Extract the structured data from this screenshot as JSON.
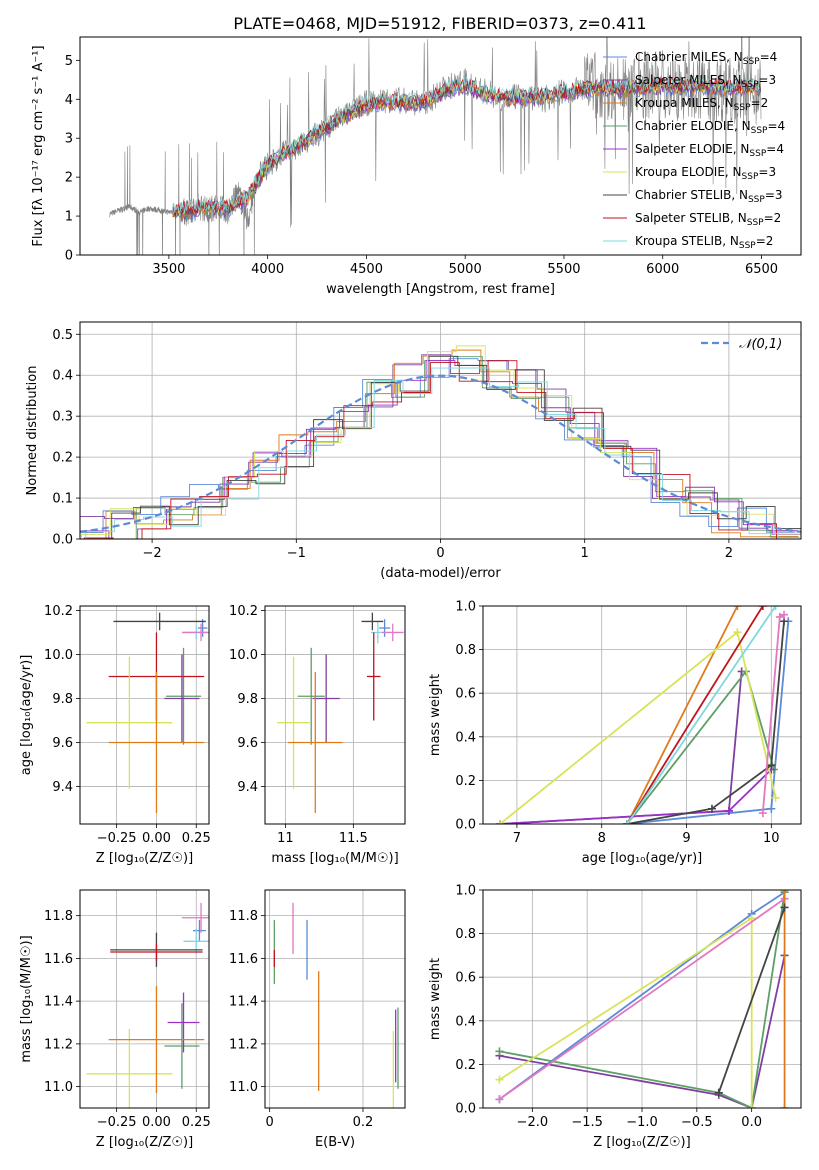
{
  "figure_title": "PLATE=0468, MJD=51912, FIBERID=0373, z=0.411",
  "chart_data": [
    {
      "id": "spectrum",
      "type": "line",
      "xlabel": "wavelength [Angstrom, rest frame]",
      "ylabel": "Flux [fλ 10⁻¹⁷ erg cm⁻² s⁻¹ A⁻¹]",
      "xlim": [
        3050,
        6700
      ],
      "ylim": [
        0,
        5.6
      ],
      "xticks": [
        3500,
        4000,
        4500,
        5000,
        5500,
        6000,
        6500
      ],
      "yticks": [
        0,
        1,
        2,
        3,
        4,
        5
      ],
      "grid": false,
      "legend_position": "top-right",
      "data_series": {
        "name": "",
        "color": "#808080",
        "x": [
          3200,
          3250,
          3300,
          3350,
          3400,
          3450,
          3500,
          3550,
          3600,
          3650,
          3700,
          3750,
          3800,
          3850,
          3900,
          3950,
          4000,
          4100,
          4200,
          4300,
          4400,
          4500,
          4600,
          4700,
          4800,
          4900,
          5000,
          5100,
          5200,
          5300,
          5400,
          5500,
          5600,
          5700,
          5800,
          5900,
          6000,
          6100,
          6200,
          6300,
          6400,
          6500
        ],
        "y": [
          1.05,
          1.15,
          1.25,
          1.1,
          1.2,
          1.15,
          1.1,
          1.2,
          1.05,
          1.25,
          1.15,
          1.3,
          1.1,
          1.6,
          0.9,
          2.0,
          2.3,
          2.7,
          2.9,
          3.3,
          3.6,
          3.9,
          4.0,
          3.95,
          3.9,
          4.3,
          4.45,
          4.2,
          4.0,
          4.1,
          4.0,
          4.2,
          4.3,
          4.4,
          4.2,
          4.35,
          4.4,
          4.25,
          4.3,
          4.3,
          4.25,
          4.25
        ]
      },
      "series": [
        {
          "name": "Chabrier MILES, N_SSP=4",
          "color": "#5b8bd6"
        },
        {
          "name": "Salpeter MILES, N_SSP=3",
          "color": "#7f3f9f"
        },
        {
          "name": "Kroupa MILES, N_SSP=2",
          "color": "#e07b1a"
        },
        {
          "name": "Chabrier ELODIE, N_SSP=4",
          "color": "#5e9e68"
        },
        {
          "name": "Salpeter ELODIE, N_SSP=4",
          "color": "#9b30c8"
        },
        {
          "name": "Kroupa ELODIE, N_SSP=3",
          "color": "#d9e35a"
        },
        {
          "name": "Chabrier STELIB, N_SSP=3",
          "color": "#444444"
        },
        {
          "name": "Salpeter STELIB, N_SSP=2",
          "color": "#c0141c"
        },
        {
          "name": "Kroupa STELIB, N_SSP=2",
          "color": "#7fd8e0"
        }
      ],
      "model_curve": {
        "x": [
          3520,
          3600,
          3700,
          3800,
          3900,
          3950,
          4000,
          4100,
          4200,
          4300,
          4400,
          4500,
          4600,
          4700,
          4800,
          4900,
          5000,
          5100,
          5200,
          5300,
          5400,
          5500,
          5600,
          5700,
          5800,
          5900,
          6000,
          6100,
          6200,
          6300,
          6400,
          6500
        ],
        "y": [
          1.1,
          1.15,
          1.25,
          1.2,
          1.5,
          1.9,
          2.3,
          2.65,
          2.95,
          3.3,
          3.6,
          3.85,
          3.95,
          3.9,
          3.95,
          4.25,
          4.35,
          4.15,
          4.05,
          4.05,
          4.1,
          4.15,
          4.25,
          4.3,
          4.25,
          4.3,
          4.35,
          4.3,
          4.35,
          4.3,
          4.3,
          4.3
        ]
      }
    },
    {
      "id": "residuals",
      "type": "histogram",
      "xlabel": "(data-model)/error",
      "ylabel": "Normed distribution",
      "xlim": [
        -2.5,
        2.5
      ],
      "ylim": [
        0,
        0.53
      ],
      "xticks": [
        -2,
        -1,
        0,
        1,
        2
      ],
      "yticks": [
        0.0,
        0.1,
        0.2,
        0.3,
        0.4,
        0.5
      ],
      "grid": true,
      "legend_position": "top-right",
      "legend_label": "𝒩(0,1)",
      "bin_edges": [
        -2.5,
        -2.3,
        -2.1,
        -1.9,
        -1.7,
        -1.5,
        -1.3,
        -1.1,
        -0.9,
        -0.7,
        -0.5,
        -0.3,
        -0.1,
        0.1,
        0.3,
        0.5,
        0.7,
        0.9,
        1.1,
        1.3,
        1.5,
        1.7,
        1.9,
        2.1,
        2.3,
        2.5
      ],
      "hist_values": [
        0.01,
        0.03,
        0.05,
        0.07,
        0.1,
        0.13,
        0.17,
        0.21,
        0.26,
        0.31,
        0.35,
        0.39,
        0.42,
        0.43,
        0.41,
        0.38,
        0.33,
        0.28,
        0.23,
        0.18,
        0.13,
        0.09,
        0.06,
        0.04,
        0.02
      ],
      "hist_colors": [
        "#5b8bd6",
        "#7f3f9f",
        "#e07b1a",
        "#5e9e68",
        "#9b30c8",
        "#d9e35a",
        "#444444",
        "#c0141c",
        "#7fd8e0"
      ]
    },
    {
      "id": "age-vs-Z",
      "type": "scatter",
      "xlabel": "Z [log₁₀(Z/Z☉)]",
      "ylabel": "age  [log₁₀(age/yr)]",
      "xlim": [
        -0.48,
        0.33
      ],
      "ylim": [
        9.23,
        10.22
      ],
      "xticks": [
        -0.25,
        0.0,
        0.25
      ],
      "xtick_labels": [
        "−0.25",
        "0.00",
        "0.25"
      ],
      "yticks": [
        9.4,
        9.6,
        9.8,
        10.0,
        10.2
      ],
      "grid": true,
      "points": [
        {
          "x": 0.29,
          "y": 10.12,
          "xerr": 0.03,
          "yerr": 0.04,
          "color": "#5b8bd6"
        },
        {
          "x": 0.25,
          "y": 10.1,
          "xerr": 0.08,
          "yerr": 0.03,
          "color": "#7fd8e0"
        },
        {
          "x": 0.28,
          "y": 10.1,
          "xerr": 0.12,
          "yerr": 0.04,
          "color": "#e377c2"
        },
        {
          "x": 0.02,
          "y": 10.15,
          "xerr": 0.29,
          "yerr": 0.04,
          "color": "#444444"
        },
        {
          "x": 0.17,
          "y": 9.81,
          "xerr": 0.11,
          "yerr": 0.22,
          "color": "#5e9e68"
        },
        {
          "x": 0.0,
          "y": 9.9,
          "xerr": 0.3,
          "yerr": 0.2,
          "color": "#c0141c"
        },
        {
          "x": 0.16,
          "y": 9.8,
          "xerr": 0.11,
          "yerr": 0.2,
          "color": "#7f3f9f"
        },
        {
          "x": -0.17,
          "y": 9.69,
          "xerr": 0.27,
          "yerr": 0.3,
          "color": "#d9e35a"
        },
        {
          "x": -0.0,
          "y": 9.6,
          "xerr": 0.3,
          "yerr": 0.32,
          "color": "#e07b1a"
        }
      ]
    },
    {
      "id": "age-vs-mass",
      "type": "scatter",
      "xlabel": "mass [log₁₀(M/M☉)]",
      "ylabel": "",
      "xlim": [
        10.85,
        11.88
      ],
      "ylim": [
        9.23,
        10.22
      ],
      "xticks": [
        11.0,
        11.5
      ],
      "yticks": [
        9.4,
        9.6,
        9.8,
        10.0,
        10.2
      ],
      "grid": true,
      "points": [
        {
          "x": 11.73,
          "y": 10.12,
          "xerr": 0.04,
          "yerr": 0.04,
          "color": "#5b8bd6"
        },
        {
          "x": 11.68,
          "y": 10.1,
          "xerr": 0.05,
          "yerr": 0.05,
          "color": "#7fd8e0"
        },
        {
          "x": 11.79,
          "y": 10.1,
          "xerr": 0.08,
          "yerr": 0.04,
          "color": "#e377c2"
        },
        {
          "x": 11.64,
          "y": 10.15,
          "xerr": 0.08,
          "yerr": 0.04,
          "color": "#444444"
        },
        {
          "x": 11.19,
          "y": 9.81,
          "xerr": 0.1,
          "yerr": 0.22,
          "color": "#5e9e68"
        },
        {
          "x": 11.65,
          "y": 9.9,
          "xerr": 0.05,
          "yerr": 0.2,
          "color": "#c0141c"
        },
        {
          "x": 11.3,
          "y": 9.8,
          "xerr": 0.1,
          "yerr": 0.2,
          "color": "#7f3f9f"
        },
        {
          "x": 11.06,
          "y": 9.69,
          "xerr": 0.12,
          "yerr": 0.3,
          "color": "#d9e35a"
        },
        {
          "x": 11.22,
          "y": 9.6,
          "xerr": 0.2,
          "yerr": 0.32,
          "color": "#e07b1a"
        }
      ]
    },
    {
      "id": "mass-weight-vs-age",
      "type": "line",
      "xlabel": "age  [log₁₀(age/yr)]",
      "ylabel": "mass weight",
      "xlim": [
        6.6,
        10.35
      ],
      "ylim": [
        0,
        1.0
      ],
      "xticks": [
        7,
        8,
        9,
        10
      ],
      "yticks": [
        0.0,
        0.2,
        0.4,
        0.6,
        0.8,
        1.0
      ],
      "grid": true,
      "series": [
        {
          "name": "",
          "color": "#5b8bd6",
          "x": [
            8.3,
            10.0,
            10.2
          ],
          "y": [
            0.0,
            0.07,
            0.93
          ]
        },
        {
          "name": "",
          "color": "#7f3f9f",
          "x": [
            6.8,
            9.5,
            9.65
          ],
          "y": [
            0.0,
            0.06,
            0.7
          ]
        },
        {
          "name": "",
          "color": "#e07b1a",
          "x": [
            8.3,
            9.6
          ],
          "y": [
            0.0,
            1.0
          ]
        },
        {
          "name": "",
          "color": "#5e9e68",
          "x": [
            8.3,
            9.7,
            10.03
          ],
          "y": [
            0.0,
            0.7,
            0.25
          ]
        },
        {
          "name": "",
          "color": "#9b30c8",
          "x": [
            6.8,
            9.5,
            10.0
          ],
          "y": [
            0.0,
            0.06,
            0.25
          ]
        },
        {
          "name": "",
          "color": "#d9e35a",
          "x": [
            6.8,
            9.6,
            10.05
          ],
          "y": [
            0.0,
            0.88,
            0.12
          ]
        },
        {
          "name": "",
          "color": "#444444",
          "x": [
            8.3,
            9.3,
            10.0,
            10.15
          ],
          "y": [
            0.0,
            0.07,
            0.27,
            0.93
          ]
        },
        {
          "name": "",
          "color": "#c0141c",
          "x": [
            8.3,
            9.9
          ],
          "y": [
            0.0,
            1.0
          ]
        },
        {
          "name": "",
          "color": "#7fd8e0",
          "x": [
            8.3,
            10.05
          ],
          "y": [
            0.0,
            1.0
          ]
        },
        {
          "name": "",
          "color": "#e377c2",
          "x": [
            9.9,
            10.1,
            10.15
          ],
          "y": [
            0.05,
            0.95,
            0.96
          ]
        }
      ]
    },
    {
      "id": "mass-vs-Z",
      "type": "scatter",
      "xlabel": "Z [log₁₀(Z/Z☉)]",
      "ylabel": "mass [log₁₀(M/M☉)]",
      "xlim": [
        -0.48,
        0.33
      ],
      "ylim": [
        10.9,
        11.92
      ],
      "xticks": [
        -0.25,
        0.0,
        0.25
      ],
      "xtick_labels": [
        "−0.25",
        "0.00",
        "0.25"
      ],
      "yticks": [
        11.0,
        11.2,
        11.4,
        11.6,
        11.8
      ],
      "grid": true,
      "points": [
        {
          "x": 0.27,
          "y": 11.73,
          "xerr": 0.04,
          "yerr": 0.05,
          "color": "#5b8bd6"
        },
        {
          "x": 0.25,
          "y": 11.68,
          "xerr": 0.08,
          "yerr": 0.06,
          "color": "#7fd8e0"
        },
        {
          "x": 0.28,
          "y": 11.79,
          "xerr": 0.12,
          "yerr": 0.07,
          "color": "#e377c2"
        },
        {
          "x": -0.0,
          "y": 11.64,
          "xerr": 0.29,
          "yerr": 0.08,
          "color": "#444444"
        },
        {
          "x": 0.0,
          "y": 11.63,
          "xerr": 0.29,
          "yerr": 0.04,
          "color": "#c0141c"
        },
        {
          "x": 0.16,
          "y": 11.19,
          "xerr": 0.11,
          "yerr": 0.2,
          "color": "#5e9e68"
        },
        {
          "x": 0.17,
          "y": 11.3,
          "xerr": 0.1,
          "yerr": 0.14,
          "color": "#9b30c8"
        },
        {
          "x": -0.17,
          "y": 11.06,
          "xerr": 0.27,
          "yerr": 0.21,
          "color": "#d9e35a"
        },
        {
          "x": -0.0,
          "y": 11.22,
          "xerr": 0.3,
          "yerr": 0.25,
          "color": "#e07b1a"
        }
      ]
    },
    {
      "id": "mass-vs-EBV",
      "type": "scatter",
      "xlabel": "E(B-V)",
      "ylabel": "",
      "xlim": [
        -0.01,
        0.29
      ],
      "ylim": [
        10.9,
        11.92
      ],
      "xticks": [
        0.0,
        0.2
      ],
      "yticks": [
        11.0,
        11.2,
        11.4,
        11.6,
        11.8
      ],
      "grid": true,
      "points": [
        {
          "x": 0.08,
          "y": 11.64,
          "xerr": 0,
          "yerr": 0.14,
          "color": "#5b8bd6"
        },
        {
          "x": 0.05,
          "y": 11.74,
          "xerr": 0,
          "yerr": 0.12,
          "color": "#e377c2"
        },
        {
          "x": 0.01,
          "y": 11.63,
          "xerr": 0,
          "yerr": 0.15,
          "color": "#5e9e68"
        },
        {
          "x": 0.01,
          "y": 11.6,
          "xerr": 0,
          "yerr": 0.04,
          "color": "#c0141c"
        },
        {
          "x": 0.105,
          "y": 11.26,
          "xerr": 0,
          "yerr": 0.28,
          "color": "#e07b1a"
        },
        {
          "x": 0.27,
          "y": 11.19,
          "xerr": 0,
          "yerr": 0.17,
          "color": "#9b30c8"
        },
        {
          "x": 0.275,
          "y": 11.18,
          "xerr": 0,
          "yerr": 0.19,
          "color": "#5e9e68"
        },
        {
          "x": 0.265,
          "y": 11.06,
          "xerr": 0,
          "yerr": 0.2,
          "color": "#d9e35a"
        }
      ]
    },
    {
      "id": "mass-weight-vs-Z",
      "type": "line",
      "xlabel": "Z [log₁₀(Z/Z☉)]",
      "ylabel": "mass weight",
      "xlim": [
        -2.45,
        0.45
      ],
      "ylim": [
        0,
        1.0
      ],
      "xticks": [
        -2.0,
        -1.5,
        -1.0,
        -0.5,
        0.0
      ],
      "xtick_labels": [
        "−2.0",
        "−1.5",
        "−1.0",
        "−0.5",
        "0.0"
      ],
      "yticks": [
        0.0,
        0.2,
        0.4,
        0.6,
        0.8,
        1.0
      ],
      "grid": true,
      "series": [
        {
          "name": "",
          "color": "#5b8bd6",
          "x": [
            -2.3,
            0.0,
            0.3
          ],
          "y": [
            0.04,
            0.89,
            0.99
          ]
        },
        {
          "name": "",
          "color": "#7f3f9f",
          "x": [
            -2.3,
            -0.3,
            0.0,
            0.3
          ],
          "y": [
            0.24,
            0.06,
            0.0,
            0.7
          ]
        },
        {
          "name": "",
          "color": "#5e9e68",
          "x": [
            -2.3,
            -0.3,
            0.0,
            0.3
          ],
          "y": [
            0.26,
            0.07,
            0.0,
            0.99
          ]
        },
        {
          "name": "",
          "color": "#d9e35a",
          "x": [
            -2.3,
            0.0,
            0.0
          ],
          "y": [
            0.13,
            0.87,
            0.0
          ]
        },
        {
          "name": "",
          "color": "#e377c2",
          "x": [
            -2.3,
            0.3
          ],
          "y": [
            0.04,
            0.96
          ]
        },
        {
          "name": "",
          "color": "#e07b1a",
          "x": [
            0.3,
            0.3
          ],
          "y": [
            0.0,
            1.0
          ]
        },
        {
          "name": "",
          "color": "#444444",
          "x": [
            -0.3,
            0.3
          ],
          "y": [
            0.07,
            0.92
          ]
        }
      ]
    }
  ]
}
